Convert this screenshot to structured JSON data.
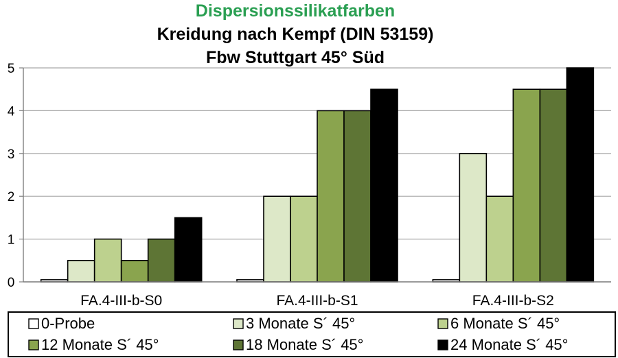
{
  "chart_data": {
    "type": "bar",
    "title": "Dispersionssilikatfarben",
    "subtitle": [
      "Kreidung nach Kempf (DIN 53159)",
      "Fbw Stuttgart 45° Süd"
    ],
    "title_color": "#2a9f52",
    "categories": [
      "FA.4-III-b-S0",
      "FA.4-III-b-S1",
      "FA.4-III-b-S2"
    ],
    "ylim": [
      0,
      5
    ],
    "yticks": [
      0,
      1,
      2,
      3,
      4,
      5
    ],
    "grid": true,
    "legend_position": "bottom",
    "series": [
      {
        "name": "0-Probe",
        "color": "#ffffff",
        "values": [
          0.05,
          0.05,
          0.05
        ]
      },
      {
        "name": "3 Monate S´ 45°",
        "color": "#dde8c8",
        "values": [
          0.5,
          2,
          3
        ]
      },
      {
        "name": "6 Monate S´ 45°",
        "color": "#bdd18e",
        "values": [
          1,
          2,
          2
        ]
      },
      {
        "name": "12 Monate  S´ 45°",
        "color": "#8aa44e",
        "values": [
          0.5,
          4,
          4.5
        ]
      },
      {
        "name": "18 Monate  S´ 45°",
        "color": "#5e7535",
        "values": [
          1,
          4,
          4.5
        ]
      },
      {
        "name": "24 Monate  S´ 45°",
        "color": "#000000",
        "values": [
          1.5,
          4.5,
          5
        ]
      }
    ]
  }
}
